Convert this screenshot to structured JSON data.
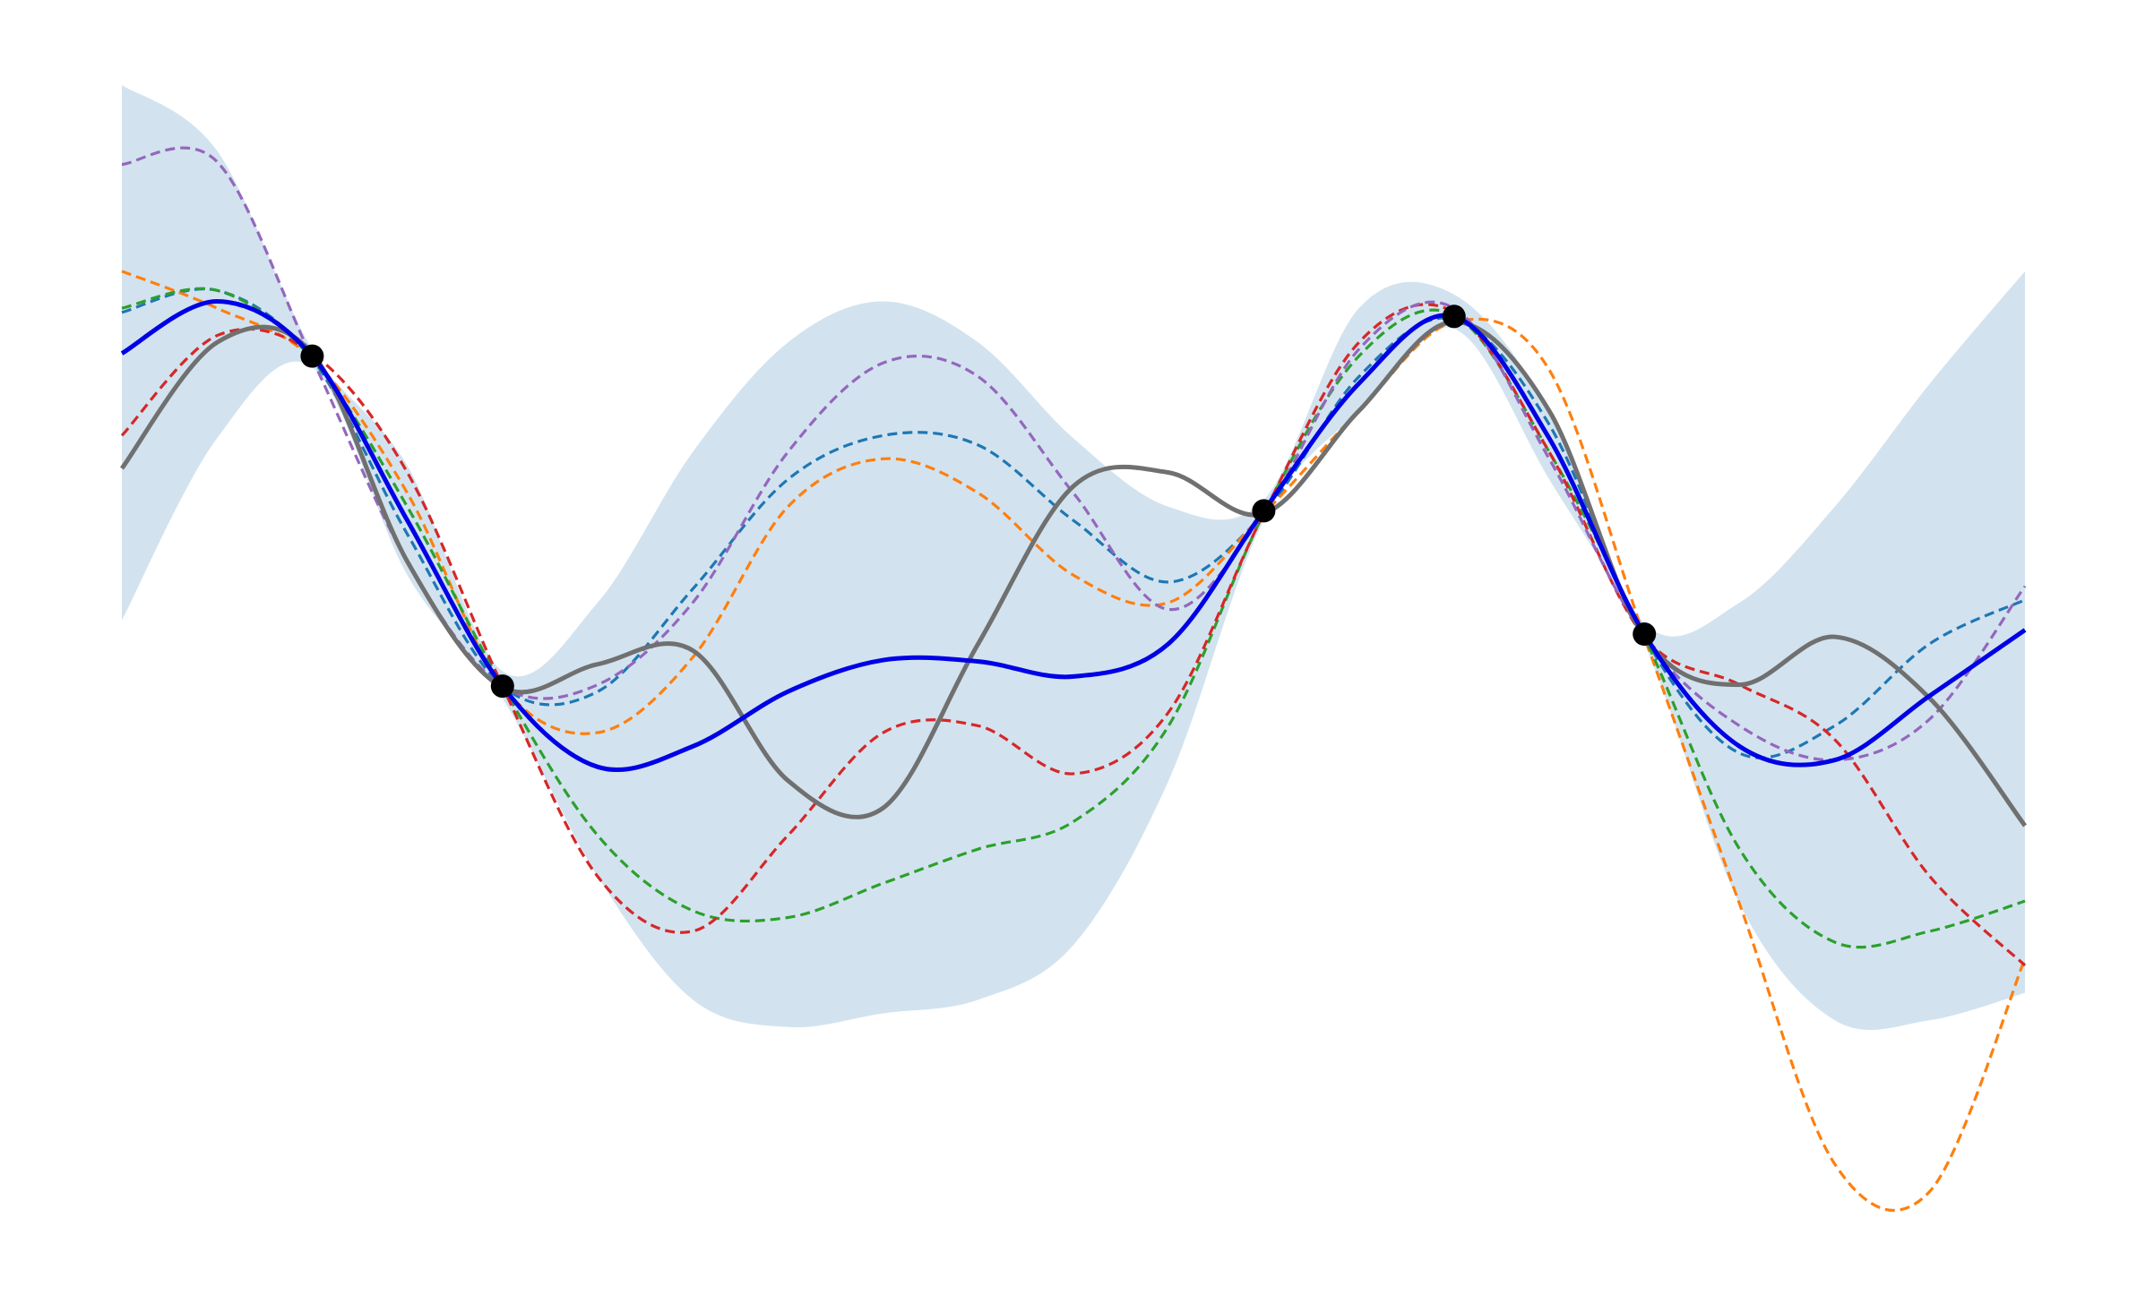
{
  "chart_data": {
    "type": "line",
    "x": [
      0,
      0.5,
      1,
      1.5,
      2,
      2.5,
      3,
      3.5,
      4,
      4.5,
      5,
      5.5,
      6,
      6.5,
      7,
      7.5,
      8,
      8.5,
      9,
      9.5,
      10
    ],
    "xlim": [
      0,
      10
    ],
    "ylim": [
      -4.5,
      4.5
    ],
    "grid": false,
    "band": {
      "color": "#d2e3ef",
      "upper": [
        4.18,
        3.7,
        2.25,
        1.4,
        -0.1,
        0.4,
        1.5,
        2.3,
        2.6,
        2.3,
        1.6,
        1.1,
        1.15,
        2.55,
        2.65,
        1.8,
        0.25,
        0.4,
        1.1,
        2.0,
        2.82
      ],
      "lower": [
        0.27,
        1.6,
        2.12,
        0.6,
        -0.3,
        -1.6,
        -2.5,
        -2.7,
        -2.6,
        -2.5,
        -2.1,
        -0.9,
        1.0,
        1.8,
        2.4,
        1.3,
        0.1,
        -1.8,
        -2.65,
        -2.65,
        -2.45
      ]
    },
    "series": [
      {
        "color": "#1f77b4",
        "style": "dashed",
        "values": [
          2.52,
          2.68,
          2.18,
          0.9,
          -0.21,
          -0.25,
          0.5,
          1.3,
          1.62,
          1.55,
          1.0,
          0.55,
          1.05,
          2.05,
          2.47,
          1.7,
          0.15,
          -0.7,
          -0.5,
          0.1,
          0.42
        ]
      },
      {
        "color": "#ff7f0e",
        "style": "dashed",
        "values": [
          2.82,
          2.55,
          2.18,
          1.2,
          -0.21,
          -0.55,
          0.0,
          1.1,
          1.45,
          1.2,
          0.6,
          0.4,
          1.05,
          1.8,
          2.45,
          2.1,
          0.15,
          -1.8,
          -3.7,
          -3.9,
          -2.2
        ]
      },
      {
        "color": "#2ca02c",
        "style": "dashed",
        "values": [
          2.55,
          2.68,
          2.18,
          1.1,
          -0.21,
          -1.3,
          -1.85,
          -1.9,
          -1.65,
          -1.4,
          -1.2,
          -0.5,
          1.05,
          2.2,
          2.5,
          1.5,
          0.15,
          -1.4,
          -2.08,
          -2.0,
          -1.78
        ]
      },
      {
        "color": "#d62728",
        "style": "dashed",
        "values": [
          1.62,
          2.35,
          2.22,
          1.35,
          -0.21,
          -1.6,
          -2.0,
          -1.3,
          -0.55,
          -0.5,
          -0.85,
          -0.4,
          1.05,
          2.3,
          2.52,
          1.5,
          0.15,
          -0.2,
          -0.6,
          -1.6,
          -2.25
        ]
      },
      {
        "color": "#9467bd",
        "style": "dashed",
        "values": [
          3.6,
          3.62,
          2.18,
          0.7,
          -0.21,
          -0.2,
          0.4,
          1.5,
          2.15,
          2.05,
          1.2,
          0.35,
          1.05,
          2.25,
          2.55,
          1.45,
          0.15,
          -0.5,
          -0.75,
          -0.45,
          0.52
        ]
      },
      {
        "color": "#707070",
        "style": "solid",
        "values": [
          1.38,
          2.3,
          2.22,
          0.7,
          -0.22,
          -0.05,
          0.05,
          -0.9,
          -1.1,
          0.1,
          1.25,
          1.35,
          1.05,
          1.8,
          2.45,
          1.8,
          0.15,
          -0.2,
          0.15,
          -0.3,
          -1.23
        ]
      },
      {
        "color": "#0000e6",
        "style": "solid",
        "values": [
          2.22,
          2.6,
          2.2,
          1.0,
          -0.21,
          -0.8,
          -0.65,
          -0.25,
          -0.02,
          -0.03,
          -0.14,
          0.1,
          1.07,
          2.0,
          2.49,
          1.6,
          0.17,
          -0.65,
          -0.75,
          -0.28,
          0.2
        ]
      }
    ],
    "points": {
      "color": "#000000",
      "x": [
        1,
        2,
        6,
        7,
        8
      ],
      "y": [
        2.2,
        -0.21,
        1.07,
        2.49,
        0.17
      ]
    }
  }
}
